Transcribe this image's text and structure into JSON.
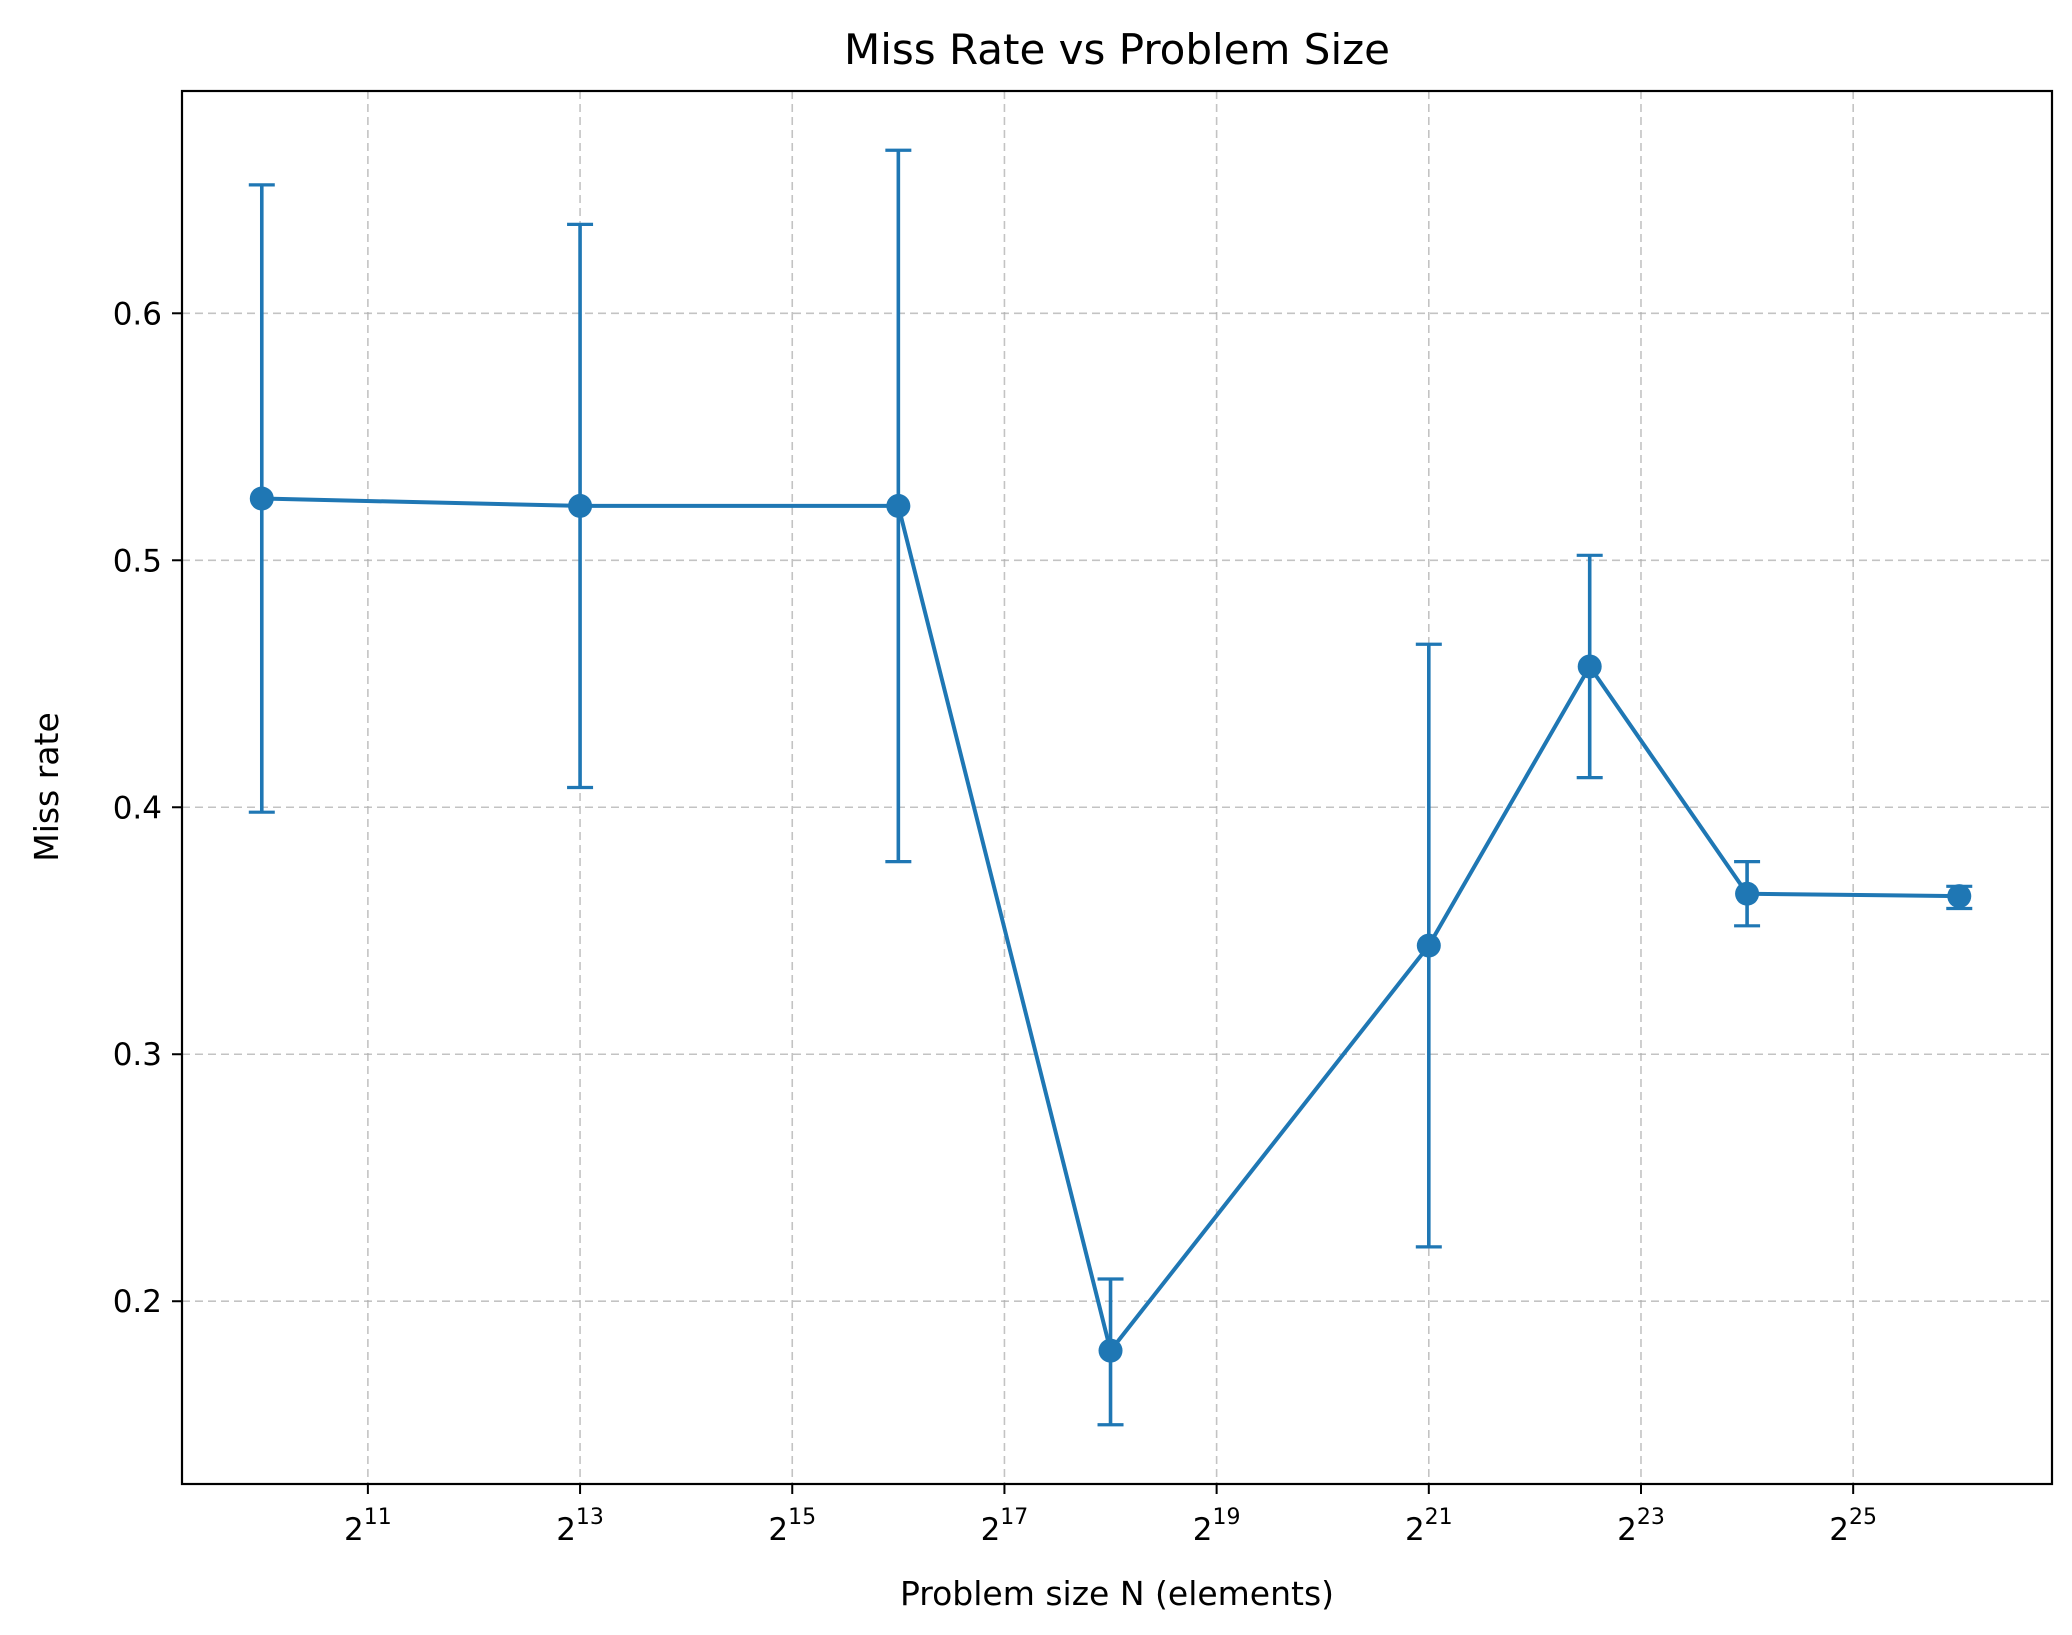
{
  "chart_data": {
    "type": "line",
    "title": "Miss Rate vs Problem Size",
    "xlabel": "Problem size N (elements)",
    "ylabel": "Miss rate",
    "x_scale": "log2",
    "x_ticks": [
      {
        "base": "2",
        "exp": "11",
        "value": 2048
      },
      {
        "base": "2",
        "exp": "13",
        "value": 8192
      },
      {
        "base": "2",
        "exp": "15",
        "value": 32768
      },
      {
        "base": "2",
        "exp": "17",
        "value": 131072
      },
      {
        "base": "2",
        "exp": "19",
        "value": 524288
      },
      {
        "base": "2",
        "exp": "21",
        "value": 2097152
      },
      {
        "base": "2",
        "exp": "23",
        "value": 8388608
      },
      {
        "base": "2",
        "exp": "25",
        "value": 33554432
      }
    ],
    "y_ticks": [
      "0.2",
      "0.3",
      "0.4",
      "0.5",
      "0.6"
    ],
    "xlim": [
      608,
      123000000
    ],
    "ylim": [
      0.126,
      0.69
    ],
    "grid": true,
    "series": [
      {
        "color": "#1f77b4",
        "marker": "circle",
        "points": [
          {
            "x": 1024,
            "y": 0.525,
            "lo": 0.398,
            "hi": 0.652
          },
          {
            "x": 8192,
            "y": 0.522,
            "lo": 0.408,
            "hi": 0.636
          },
          {
            "x": 65536,
            "y": 0.522,
            "lo": 0.378,
            "hi": 0.666
          },
          {
            "x": 262144,
            "y": 0.18,
            "lo": 0.15,
            "hi": 0.209
          },
          {
            "x": 2097152,
            "y": 0.344,
            "lo": 0.222,
            "hi": 0.466
          },
          {
            "x": 6000000,
            "y": 0.457,
            "lo": 0.412,
            "hi": 0.502
          },
          {
            "x": 16777216,
            "y": 0.365,
            "lo": 0.352,
            "hi": 0.378
          },
          {
            "x": 67108864,
            "y": 0.364,
            "lo": 0.359,
            "hi": 0.368
          }
        ]
      }
    ]
  }
}
